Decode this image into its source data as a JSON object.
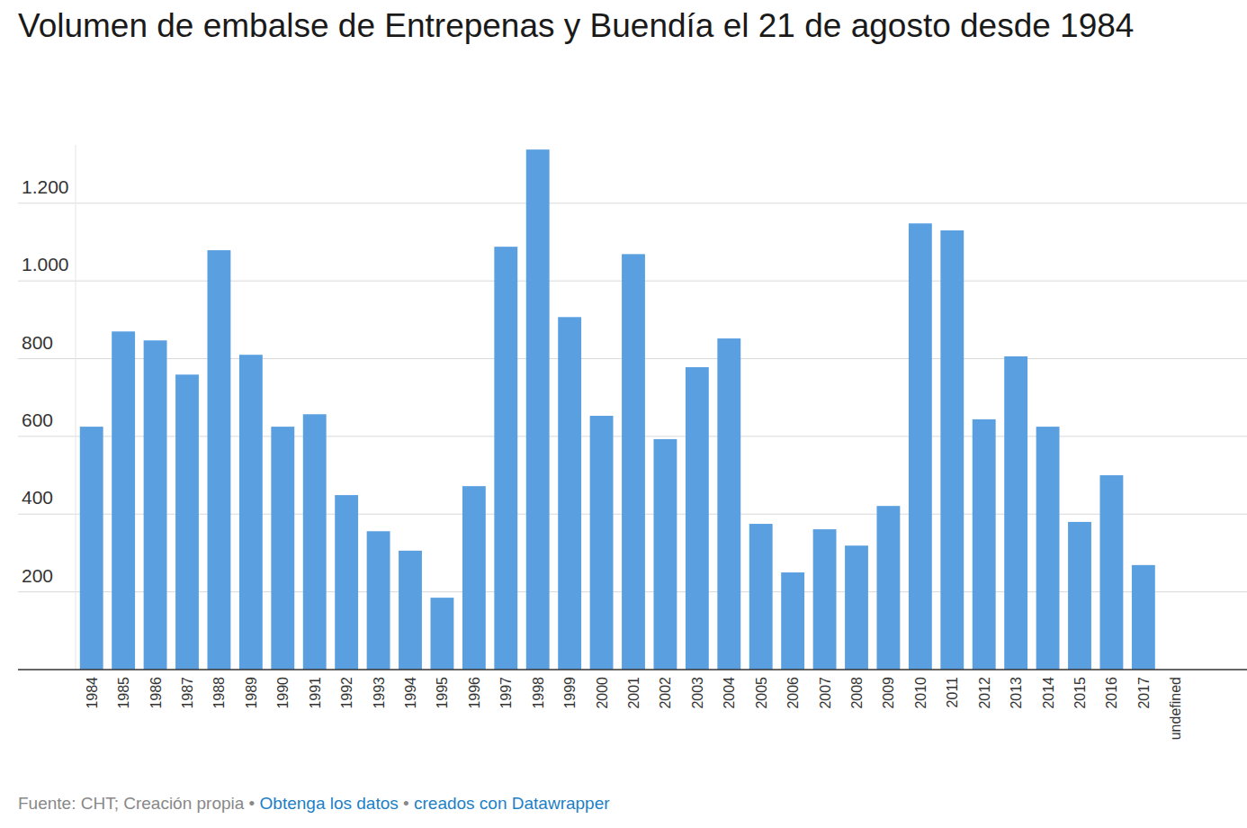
{
  "chart_data": {
    "type": "bar",
    "title": "Volumen de embalse de Entrepenas y Buendía el 21 de agosto desde 1984",
    "categories": [
      "1984",
      "1985",
      "1986",
      "1987",
      "1988",
      "1989",
      "1990",
      "1991",
      "1992",
      "1993",
      "1994",
      "1995",
      "1996",
      "1997",
      "1998",
      "1999",
      "2000",
      "2001",
      "2002",
      "2003",
      "2004",
      "2005",
      "2006",
      "2007",
      "2008",
      "2009",
      "2010",
      "2011",
      "2012",
      "2013",
      "2014",
      "2015",
      "2016",
      "2017",
      "undefined"
    ],
    "values": [
      625,
      870,
      847,
      759,
      1079,
      810,
      625,
      657,
      449,
      356,
      306,
      185,
      472,
      1088,
      1338,
      907,
      653,
      1069,
      593,
      778,
      852,
      375,
      250,
      361,
      319,
      421,
      1148,
      1130,
      644,
      806,
      625,
      380,
      500,
      269,
      null
    ],
    "color": "#5a9fe0",
    "ylim": [
      0,
      1350
    ],
    "yticks": [
      200,
      400,
      600,
      800,
      {
        "value": 1000,
        "label": "1.000"
      },
      {
        "value": 1200,
        "label": "1.200"
      }
    ],
    "grid": true,
    "source": "Fuente: CHT; Creación propia",
    "separator": "•",
    "links": [
      "Obtenga los datos",
      "creados con Datawrapper"
    ]
  }
}
